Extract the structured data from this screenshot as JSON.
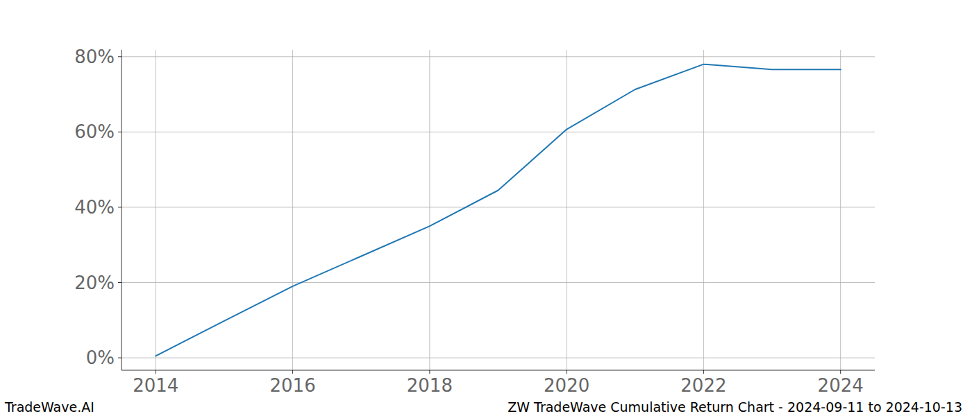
{
  "chart_data": {
    "type": "line",
    "title": "ZW TradeWave Cumulative Return Chart - 2024-09-11 to 2024-10-13",
    "source": "TradeWave.AI",
    "x": [
      2014,
      2015,
      2016,
      2017,
      2018,
      2019,
      2020,
      2021,
      2022,
      2023,
      2024
    ],
    "series": [
      {
        "name": "ZW",
        "color": "#1f77b4",
        "values": [
          0.5,
          9.8,
          19.0,
          27.0,
          35.0,
          44.5,
          60.7,
          71.3,
          78.0,
          76.6,
          76.6
        ]
      }
    ],
    "xlim": [
      2013.5,
      2024.5
    ],
    "xticks": [
      2014,
      2016,
      2018,
      2020,
      2022,
      2024
    ],
    "ylim": [
      -3.3,
      81.8
    ],
    "yticks": [
      {
        "value": 0,
        "label": "0%"
      },
      {
        "value": 20,
        "label": "20%"
      },
      {
        "value": 40,
        "label": "40%"
      },
      {
        "value": 60,
        "label": "60%"
      },
      {
        "value": 80,
        "label": "80%"
      }
    ],
    "grid": true
  }
}
